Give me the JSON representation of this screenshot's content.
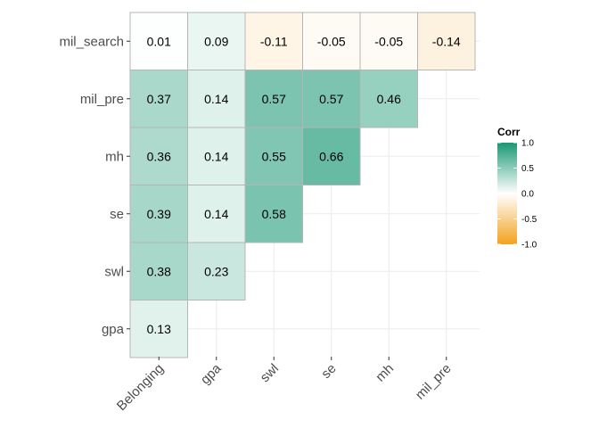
{
  "chart_data": {
    "type": "heatmap",
    "title": "",
    "xlabel": "",
    "ylabel": "",
    "x_categories": [
      "Belonging",
      "gpa",
      "swl",
      "se",
      "mh",
      "mil_pre"
    ],
    "y_categories": [
      "mil_search",
      "mil_pre",
      "mh",
      "se",
      "swl",
      "gpa"
    ],
    "cells": [
      {
        "row": "mil_search",
        "col": "Belonging",
        "value": 0.01,
        "label": "0.01"
      },
      {
        "row": "mil_search",
        "col": "gpa",
        "value": 0.09,
        "label": "0.09"
      },
      {
        "row": "mil_search",
        "col": "swl",
        "value": -0.11,
        "label": "-0.11"
      },
      {
        "row": "mil_search",
        "col": "se",
        "value": -0.05,
        "label": "-0.05"
      },
      {
        "row": "mil_search",
        "col": "mh",
        "value": -0.05,
        "label": "-0.05"
      },
      {
        "row": "mil_search",
        "col": "mil_pre",
        "value": -0.14,
        "label": "-0.14"
      },
      {
        "row": "mil_pre",
        "col": "Belonging",
        "value": 0.37,
        "label": "0.37"
      },
      {
        "row": "mil_pre",
        "col": "gpa",
        "value": 0.14,
        "label": "0.14"
      },
      {
        "row": "mil_pre",
        "col": "swl",
        "value": 0.57,
        "label": "0.57"
      },
      {
        "row": "mil_pre",
        "col": "se",
        "value": 0.57,
        "label": "0.57"
      },
      {
        "row": "mil_pre",
        "col": "mh",
        "value": 0.46,
        "label": "0.46"
      },
      {
        "row": "mh",
        "col": "Belonging",
        "value": 0.36,
        "label": "0.36"
      },
      {
        "row": "mh",
        "col": "gpa",
        "value": 0.14,
        "label": "0.14"
      },
      {
        "row": "mh",
        "col": "swl",
        "value": 0.55,
        "label": "0.55"
      },
      {
        "row": "mh",
        "col": "se",
        "value": 0.66,
        "label": "0.66"
      },
      {
        "row": "se",
        "col": "Belonging",
        "value": 0.39,
        "label": "0.39"
      },
      {
        "row": "se",
        "col": "gpa",
        "value": 0.14,
        "label": "0.14"
      },
      {
        "row": "se",
        "col": "swl",
        "value": 0.58,
        "label": "0.58"
      },
      {
        "row": "swl",
        "col": "Belonging",
        "value": 0.38,
        "label": "0.38"
      },
      {
        "row": "swl",
        "col": "gpa",
        "value": 0.23,
        "label": "0.23"
      },
      {
        "row": "gpa",
        "col": "Belonging",
        "value": 0.13,
        "label": "0.13"
      }
    ],
    "legend": {
      "title": "Corr",
      "placement": "right",
      "range": [
        -1,
        1
      ],
      "breaks": [
        1.0,
        0.5,
        0.0,
        -0.5,
        -1.0
      ],
      "break_labels": [
        "1.0",
        "0.5",
        "0.0",
        "-0.5",
        "-1.0"
      ]
    },
    "colors": {
      "high": "#1a9873",
      "mid": "#ffffff",
      "low": "#f2a21d"
    },
    "grid": true
  }
}
